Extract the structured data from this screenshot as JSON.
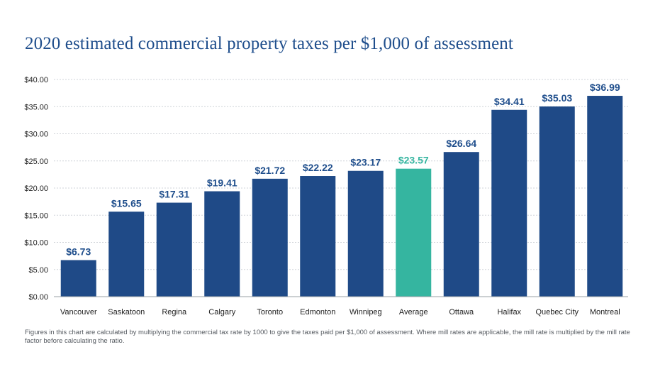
{
  "title": "2020 estimated commercial property taxes per $1,000 of assessment",
  "footnote": "Figures in this chart are calculated by multiplying the commercial tax rate by 1000 to give the taxes paid per $1,000 of assessment. Where mill rates are applicable, the mill rate is multiplied by the mill rate factor before calculating the ratio.",
  "colors": {
    "bar": "#1f4a87",
    "highlight": "#35b5a0",
    "label": "#1f4e8c",
    "highlight_label": "#35b5a0",
    "grid": "#cfd3d8",
    "axis_text": "#222222"
  },
  "chart_data": {
    "type": "bar",
    "title": "2020 estimated commercial property taxes per $1,000 of assessment",
    "xlabel": "",
    "ylabel": "",
    "categories": [
      "Vancouver",
      "Saskatoon",
      "Regina",
      "Calgary",
      "Toronto",
      "Edmonton",
      "Winnipeg",
      "Average",
      "Ottawa",
      "Halifax",
      "Quebec City",
      "Montreal"
    ],
    "values": [
      6.73,
      15.65,
      17.31,
      19.41,
      21.72,
      22.22,
      23.17,
      23.57,
      26.64,
      34.41,
      35.03,
      36.99
    ],
    "value_labels": [
      "$6.73",
      "$15.65",
      "$17.31",
      "$19.41",
      "$21.72",
      "$22.22",
      "$23.17",
      "$23.57",
      "$26.64",
      "$34.41",
      "$35.03",
      "$36.99"
    ],
    "highlight_category": "Average",
    "ylim": [
      0,
      40
    ],
    "yticks": [
      0,
      5,
      10,
      15,
      20,
      25,
      30,
      35,
      40
    ],
    "ytick_labels": [
      "$0.00",
      "$5.00",
      "$10.00",
      "$15.00",
      "$20.00",
      "$25.00",
      "$30.00",
      "$35.00",
      "$40.00"
    ],
    "grid": true,
    "legend": "none"
  }
}
